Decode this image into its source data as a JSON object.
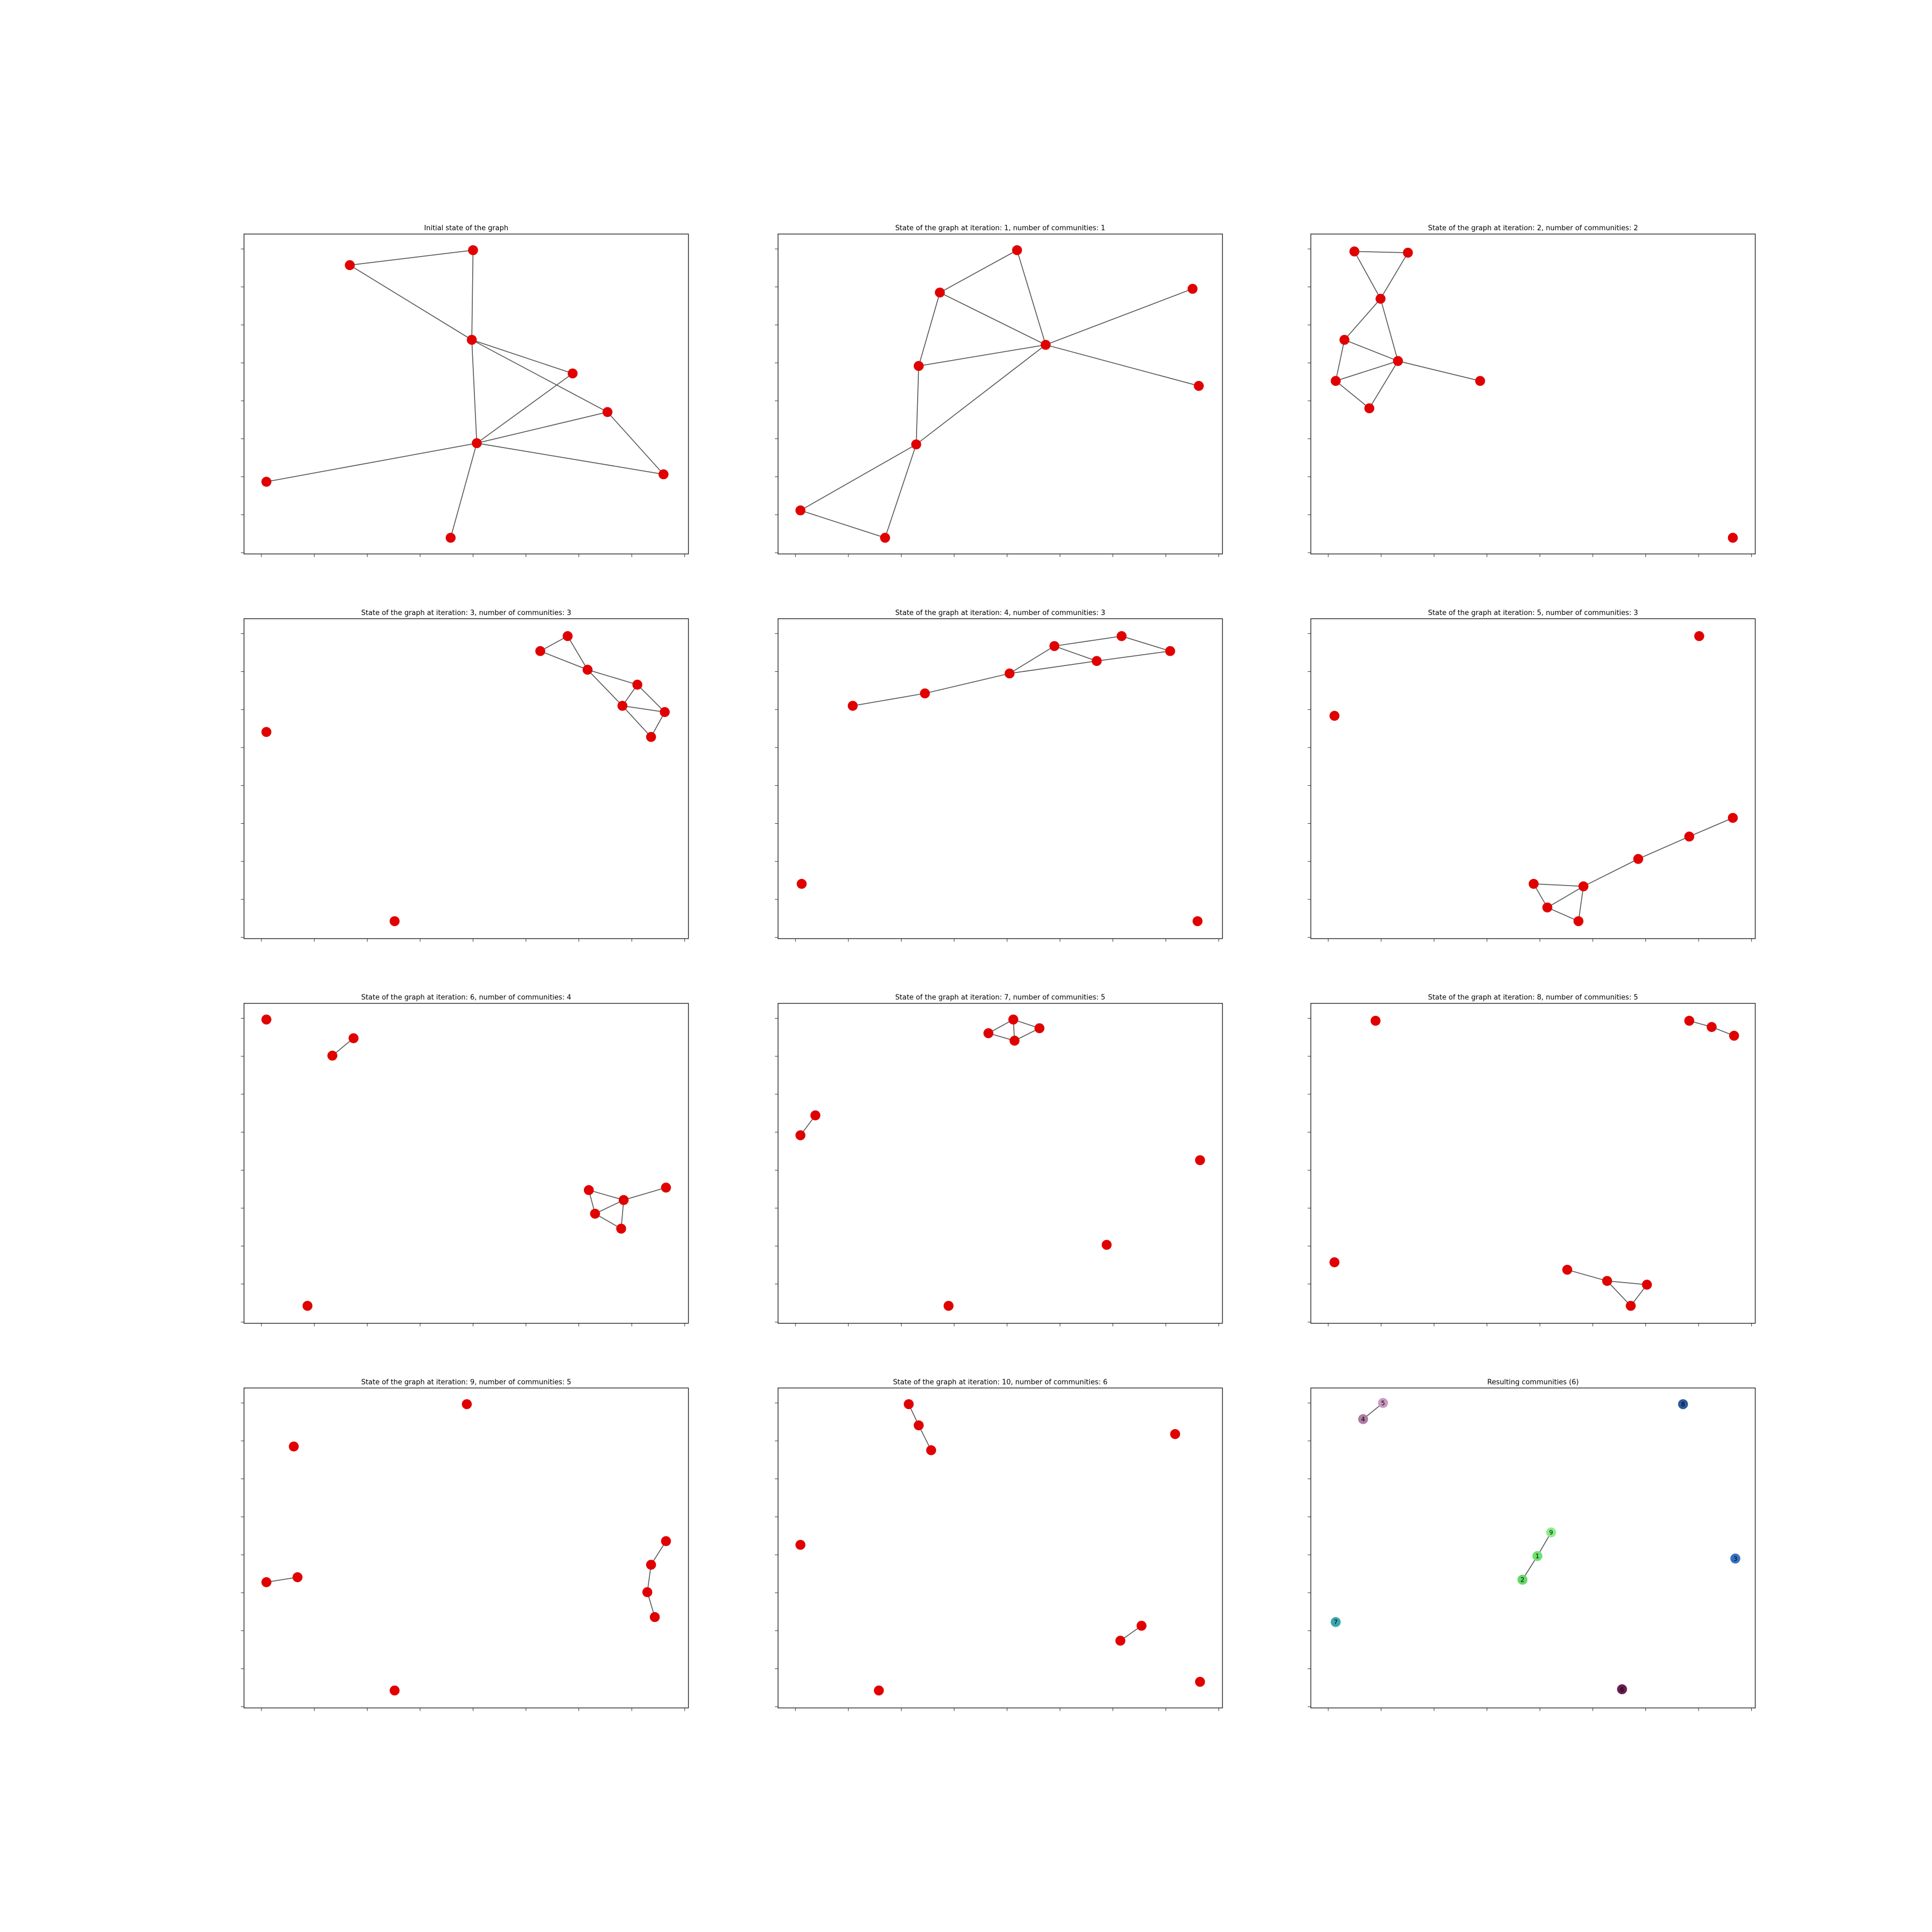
{
  "panels": [
    {
      "title": "Initial state of the graph"
    },
    {
      "title": "State of the graph at iteration: 1, number of communities: 1"
    },
    {
      "title": "State of the graph at iteration: 2, number of communities: 2"
    },
    {
      "title": "State of the graph at iteration: 3, number of communities: 3"
    },
    {
      "title": "State of the graph at iteration: 4, number of communities: 3"
    },
    {
      "title": "State of the graph at iteration: 5, number of communities: 3"
    },
    {
      "title": "State of the graph at iteration: 6, number of communities: 4"
    },
    {
      "title": "State of the graph at iteration: 7, number of communities: 5"
    },
    {
      "title": "State of the graph at iteration: 8, number of communities: 5"
    },
    {
      "title": "State of the graph at iteration: 9, number of communities: 5"
    },
    {
      "title": "State of the graph at iteration: 10, number of communities: 6"
    },
    {
      "title": "Resulting communities (6)",
      "nodes": [
        {
          "label": "5",
          "color": "#c99ac0"
        },
        {
          "label": "4",
          "color": "#b07ca2"
        },
        {
          "label": "8",
          "color": "#2b5c9e"
        },
        {
          "label": "9",
          "color": "#8af08a"
        },
        {
          "label": "1",
          "color": "#70e070"
        },
        {
          "label": "2",
          "color": "#66d866"
        },
        {
          "label": "3",
          "color": "#3572c2"
        },
        {
          "label": "7",
          "color": "#3aa8b0"
        },
        {
          "label": "6",
          "color": "#6a1c52"
        }
      ]
    }
  ]
}
